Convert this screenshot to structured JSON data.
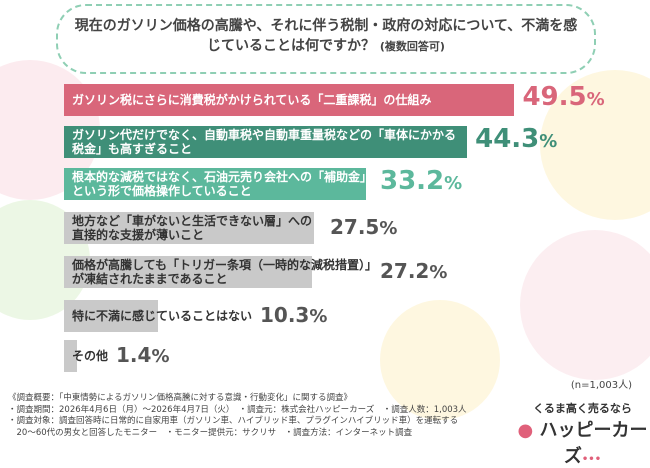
{
  "question": {
    "main": "現在のガソリン価格の高騰や、それに伴う税制・政府の対応について、不満を感じていることは何ですか？",
    "note": "(複数回答可)"
  },
  "chart_data": {
    "type": "bar",
    "orientation": "horizontal",
    "unit": "%",
    "categories": [
      "ガソリン税にさらに消費税がかけられている「二重課税」の仕組み",
      "ガソリン代だけでなく、自動車税や自動車重量税などの「車体にかかる税金」も高すぎること",
      "根本的な減税ではなく、石油元売り会社への「補助金」という形で価格操作していること",
      "地方など「車がないと生活できない層」への直接的な支援が薄いこと",
      "価格が高騰しても「トリガー条項（一時的な減税措置）」が凍結されたままであること",
      "特に不満に感じていることはない",
      "その他"
    ],
    "values": [
      49.5,
      44.3,
      33.2,
      27.5,
      27.2,
      10.3,
      1.4
    ],
    "colors": [
      "#d9667a",
      "#3f8f78",
      "#5cb89c",
      "#c9c9c9",
      "#c9c9c9",
      "#c9c9c9",
      "#c9c9c9"
    ],
    "value_colors": [
      "#d9667a",
      "#3f8f78",
      "#5cb89c",
      "#555555",
      "#555555",
      "#555555",
      "#555555"
    ],
    "xlim": [
      0,
      50
    ]
  },
  "sample": "(n=1,003人)",
  "footer": [
    "《調査概要：「中東情勢によるガソリン価格高騰に対する意識・行動変化」に関する調査》",
    "・調査期間：2026年4月6日（月）〜2026年4月7日（火）　・調査元：株式会社ハッピーカーズ　・調査人数：1,003人",
    "・調査対象：調査回答時に日常的に自家用車（ガソリン車、ハイブリッド車、プラグインハイブリッド車）を運転する",
    "　20〜60代の男女と回答したモニター　・モニター提供元：サクリサ　・調査方法：インターネット調査"
  ],
  "logo": {
    "tagline": "くるま高く売るなら",
    "name": "ハッピーカーズ"
  }
}
